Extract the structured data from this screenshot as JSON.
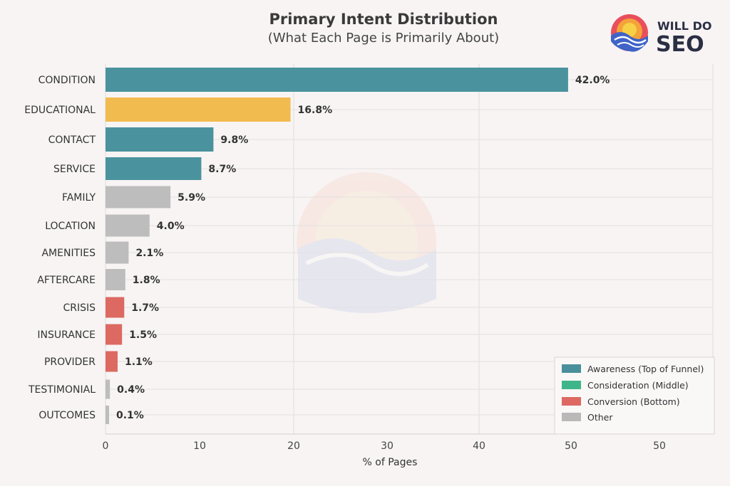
{
  "logo": {
    "line1": "WILL DO",
    "line2": "SEO"
  },
  "legend": {
    "items": [
      {
        "label": "Awareness (Top of Funnel)",
        "color": "#4a8f9c"
      },
      {
        "label": "Consideration (Middle)",
        "color": "#3fb68a"
      },
      {
        "label": "Conversion (Bottom)",
        "color": "#dc6a62"
      },
      {
        "label": "Other",
        "color": "#b9b9b9"
      }
    ]
  },
  "chart_data": {
    "type": "bar",
    "orientation": "horizontal",
    "title": "Primary Intent Distribution",
    "subtitle": "(What Each Page is Primarily About)",
    "xlabel": "% of Pages",
    "ylabel": "",
    "xlim": [
      0,
      50
    ],
    "xticks": [
      "0",
      "10",
      "20",
      "30",
      "40",
      "50",
      "50"
    ],
    "grid": true,
    "legend_position": "bottom-right",
    "categories": [
      "CONDITION",
      "EDUCATIONAL",
      "CONTACT",
      "SERVICE",
      "FAMILY",
      "LOCATION",
      "AMENITIES",
      "AFTERCARE",
      "CRISIS",
      "INSURANCE",
      "PROVIDER",
      "TESTIMONIAL",
      "OUTCOMES"
    ],
    "values": [
      42.0,
      16.8,
      9.8,
      8.7,
      5.9,
      4.0,
      2.1,
      1.8,
      1.7,
      1.5,
      1.1,
      0.4,
      0.1
    ],
    "value_labels": [
      "42.0%",
      "16.8%",
      "9.8%",
      "8.7%",
      "5.9%",
      "4.0%",
      "2.1%",
      "1.8%",
      "1.7%",
      "1.5%",
      "1.1%",
      "0.4%",
      "0.1%"
    ],
    "bar_colors": [
      "#4a939e",
      "#f2bb4f",
      "#4a939e",
      "#4a939e",
      "#bdbdbd",
      "#bdbdbd",
      "#bdbdbd",
      "#bdbdbd",
      "#dc6a62",
      "#dc6a62",
      "#dc6a62",
      "#bdbdbd",
      "#bdbdbd"
    ]
  }
}
